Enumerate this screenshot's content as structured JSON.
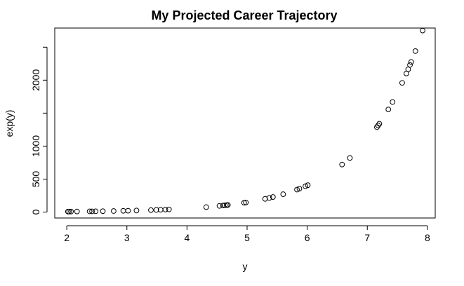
{
  "chart_data": {
    "type": "scatter",
    "title": "My Projected Career Trajectory",
    "xlabel": "y",
    "ylabel": "exp(y)",
    "xlim": [
      1.8,
      8.13
    ],
    "ylim": [
      -90,
      2790
    ],
    "x_ticks": [
      2,
      3,
      4,
      5,
      6,
      7,
      8
    ],
    "y_ticks": [
      0,
      500,
      1000,
      1500,
      2000,
      2500
    ],
    "y_tick_labels": [
      "0",
      "500",
      "1000",
      "",
      "2000",
      ""
    ],
    "grid": false,
    "legend": "none",
    "points": {
      "x": [
        2.02,
        2.04,
        2.07,
        2.17,
        2.38,
        2.42,
        2.48,
        2.6,
        2.78,
        2.94,
        3.02,
        3.16,
        3.4,
        3.49,
        3.56,
        3.64,
        3.7,
        4.32,
        4.54,
        4.6,
        4.63,
        4.66,
        4.68,
        4.95,
        4.98,
        5.3,
        5.37,
        5.43,
        5.6,
        5.83,
        5.87,
        5.97,
        6.01,
        6.58,
        6.71,
        7.16,
        7.18,
        7.2,
        7.35,
        7.42,
        7.58,
        7.65,
        7.68,
        7.71,
        7.73,
        7.8,
        7.92
      ],
      "y": [
        7.5,
        7.7,
        7.9,
        8.8,
        10.8,
        11.2,
        11.9,
        13.5,
        16.1,
        18.9,
        20.5,
        23.6,
        30,
        32.8,
        35.2,
        38.1,
        40.4,
        75.2,
        93.7,
        99.5,
        102.5,
        105.6,
        107.8,
        141.2,
        145.5,
        200.3,
        214.9,
        228.1,
        270.4,
        340.4,
        354.3,
        391.5,
        407.5,
        720.5,
        820.6,
        1287.1,
        1313.1,
        1339.4,
        1556.2,
        1668.9,
        1958.6,
        2100.6,
        2164.6,
        2230.5,
        2275.5,
        2440.6,
        2751.7
      ]
    }
  }
}
